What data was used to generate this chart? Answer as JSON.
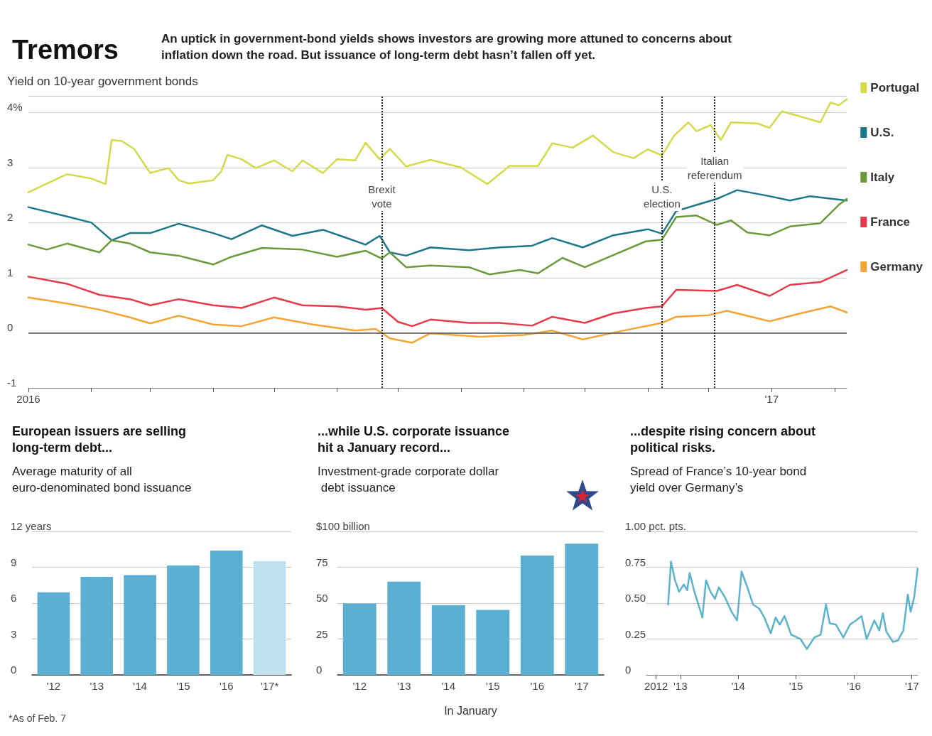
{
  "chart_data": [
    {
      "type": "line",
      "title": "Tremors",
      "subtitle": "An uptick in government-bond yields shows investors are growing more attuned to concerns about inflation down the road. But issuance of long-term debt hasn’t fallen off yet.",
      "ylabel": "Yield on 10-year government bonds",
      "xlim": [
        "2016-01-01",
        "2017-02-07"
      ],
      "xticks": [
        {
          "value": "2016-01-01",
          "label": "2016"
        },
        {
          "value": "2016-02-01",
          "label": null
        },
        {
          "value": "2016-03-01",
          "label": null
        },
        {
          "value": "2016-04-01",
          "label": null
        },
        {
          "value": "2016-05-01",
          "label": null
        },
        {
          "value": "2016-06-01",
          "label": null
        },
        {
          "value": "2016-07-01",
          "label": null
        },
        {
          "value": "2016-08-01",
          "label": null
        },
        {
          "value": "2016-09-01",
          "label": null
        },
        {
          "value": "2016-10-01",
          "label": null
        },
        {
          "value": "2016-11-01",
          "label": null
        },
        {
          "value": "2016-12-01",
          "label": null
        },
        {
          "value": "2017-01-01",
          "label": "'17"
        },
        {
          "value": "2017-02-01",
          "label": null
        }
      ],
      "ylim": [
        -1,
        4.3
      ],
      "yticks": [
        -1,
        0,
        1,
        2,
        3,
        {
          "value": 4,
          "label": "4%"
        }
      ],
      "grid": "y",
      "legend": "right",
      "marker": "none",
      "series": [
        {
          "name": "Portugal",
          "color": "#d6d94a",
          "x": [
            "2016-01-01",
            "2016-01-20",
            "2016-02-01",
            "2016-02-08",
            "2016-02-11",
            "2016-02-16",
            "2016-02-22",
            "2016-03-01",
            "2016-03-10",
            "2016-03-15",
            "2016-03-20",
            "2016-04-01",
            "2016-04-05",
            "2016-04-08",
            "2016-04-15",
            "2016-04-22",
            "2016-05-01",
            "2016-05-10",
            "2016-05-15",
            "2016-05-25",
            "2016-06-01",
            "2016-06-10",
            "2016-06-15",
            "2016-06-22",
            "2016-06-27",
            "2016-07-05",
            "2016-07-17",
            "2016-08-01",
            "2016-08-14",
            "2016-08-25",
            "2016-09-08",
            "2016-09-15",
            "2016-09-25",
            "2016-10-05",
            "2016-10-15",
            "2016-10-25",
            "2016-11-01",
            "2016-11-08",
            "2016-11-14",
            "2016-11-21",
            "2016-11-25",
            "2016-12-02",
            "2016-12-07",
            "2016-12-12",
            "2016-12-25",
            "2016-12-31",
            "2017-01-06",
            "2017-01-15",
            "2017-01-25",
            "2017-01-30",
            "2017-02-03",
            "2017-02-07"
          ],
          "values": [
            2.55,
            2.88,
            2.8,
            2.7,
            3.5,
            3.48,
            3.34,
            2.9,
            2.99,
            2.77,
            2.71,
            2.77,
            2.93,
            3.23,
            3.15,
            2.99,
            3.13,
            2.93,
            3.13,
            2.9,
            3.15,
            3.13,
            3.45,
            3.15,
            3.34,
            3.02,
            3.14,
            3.0,
            2.7,
            3.03,
            3.03,
            3.44,
            3.36,
            3.58,
            3.28,
            3.17,
            3.33,
            3.22,
            3.58,
            3.82,
            3.66,
            3.77,
            3.5,
            3.82,
            3.8,
            3.72,
            4.02,
            3.93,
            3.82,
            4.18,
            4.13,
            4.24
          ]
        },
        {
          "name": "U.S.",
          "color": "#1b7689",
          "x": [
            "2016-01-01",
            "2016-01-20",
            "2016-02-01",
            "2016-02-11",
            "2016-02-20",
            "2016-03-01",
            "2016-03-15",
            "2016-04-01",
            "2016-04-10",
            "2016-04-25",
            "2016-05-10",
            "2016-05-25",
            "2016-06-05",
            "2016-06-15",
            "2016-06-22",
            "2016-06-27",
            "2016-07-05",
            "2016-07-17",
            "2016-08-05",
            "2016-08-20",
            "2016-09-05",
            "2016-09-15",
            "2016-09-30",
            "2016-10-15",
            "2016-11-01",
            "2016-11-08",
            "2016-11-15",
            "2016-11-25",
            "2016-12-05",
            "2016-12-15",
            "2016-12-31",
            "2017-01-10",
            "2017-01-20",
            "2017-02-07"
          ],
          "values": [
            2.28,
            2.11,
            2.0,
            1.68,
            1.81,
            1.81,
            1.98,
            1.81,
            1.7,
            1.95,
            1.76,
            1.87,
            1.73,
            1.6,
            1.76,
            1.46,
            1.4,
            1.55,
            1.5,
            1.55,
            1.58,
            1.72,
            1.55,
            1.77,
            1.88,
            1.8,
            2.21,
            2.32,
            2.43,
            2.59,
            2.48,
            2.4,
            2.48,
            2.4
          ]
        },
        {
          "name": "Italy",
          "color": "#6b9a3a",
          "x": [
            "2016-01-01",
            "2016-01-10",
            "2016-01-20",
            "2016-02-05",
            "2016-02-11",
            "2016-02-20",
            "2016-03-01",
            "2016-03-15",
            "2016-04-01",
            "2016-04-10",
            "2016-04-25",
            "2016-05-15",
            "2016-06-01",
            "2016-06-15",
            "2016-06-23",
            "2016-06-27",
            "2016-07-05",
            "2016-07-17",
            "2016-08-05",
            "2016-08-15",
            "2016-08-30",
            "2016-09-08",
            "2016-09-20",
            "2016-10-01",
            "2016-10-15",
            "2016-10-31",
            "2016-11-08",
            "2016-11-15",
            "2016-11-25",
            "2016-12-05",
            "2016-12-12",
            "2016-12-20",
            "2016-12-31",
            "2017-01-10",
            "2017-01-25",
            "2017-02-03",
            "2017-02-07"
          ],
          "values": [
            1.6,
            1.51,
            1.62,
            1.46,
            1.68,
            1.62,
            1.46,
            1.4,
            1.24,
            1.38,
            1.54,
            1.51,
            1.38,
            1.49,
            1.35,
            1.46,
            1.19,
            1.22,
            1.19,
            1.06,
            1.14,
            1.08,
            1.36,
            1.19,
            1.41,
            1.66,
            1.69,
            2.1,
            2.13,
            1.96,
            2.04,
            1.82,
            1.77,
            1.93,
            1.99,
            2.32,
            2.43
          ]
        },
        {
          "name": "France",
          "color": "#e63a4b",
          "x": [
            "2016-01-01",
            "2016-01-20",
            "2016-02-05",
            "2016-02-20",
            "2016-03-01",
            "2016-03-15",
            "2016-04-01",
            "2016-04-15",
            "2016-05-01",
            "2016-05-15",
            "2016-06-01",
            "2016-06-15",
            "2016-06-23",
            "2016-07-01",
            "2016-07-08",
            "2016-07-17",
            "2016-08-05",
            "2016-08-20",
            "2016-09-05",
            "2016-09-15",
            "2016-10-01",
            "2016-10-15",
            "2016-10-31",
            "2016-11-08",
            "2016-11-15",
            "2016-12-05",
            "2016-12-15",
            "2016-12-31",
            "2017-01-10",
            "2017-01-25",
            "2017-02-07"
          ],
          "values": [
            1.02,
            0.89,
            0.69,
            0.61,
            0.5,
            0.61,
            0.5,
            0.45,
            0.64,
            0.5,
            0.48,
            0.42,
            0.45,
            0.2,
            0.12,
            0.24,
            0.18,
            0.18,
            0.13,
            0.29,
            0.18,
            0.35,
            0.45,
            0.48,
            0.78,
            0.76,
            0.87,
            0.67,
            0.87,
            0.92,
            1.14
          ]
        },
        {
          "name": "Germany",
          "color": "#f2a535",
          "x": [
            "2016-01-01",
            "2016-01-20",
            "2016-02-05",
            "2016-02-20",
            "2016-03-01",
            "2016-03-15",
            "2016-04-01",
            "2016-04-15",
            "2016-05-01",
            "2016-05-20",
            "2016-06-10",
            "2016-06-20",
            "2016-06-27",
            "2016-07-08",
            "2016-07-17",
            "2016-08-10",
            "2016-09-01",
            "2016-09-15",
            "2016-09-30",
            "2016-10-20",
            "2016-11-08",
            "2016-11-15",
            "2016-12-01",
            "2016-12-10",
            "2016-12-31",
            "2017-01-15",
            "2017-01-30",
            "2017-02-07"
          ],
          "values": [
            0.64,
            0.53,
            0.42,
            0.28,
            0.17,
            0.31,
            0.15,
            0.12,
            0.28,
            0.15,
            0.04,
            0.07,
            -0.1,
            -0.18,
            -0.01,
            -0.07,
            -0.04,
            0.04,
            -0.12,
            0.04,
            0.18,
            0.29,
            0.32,
            0.4,
            0.21,
            0.35,
            0.48,
            0.37
          ]
        }
      ],
      "ref_lines": [
        {
          "axis": "y",
          "value": 0,
          "color": "#555555",
          "line_style": "solid"
        },
        {
          "axis": "x",
          "value": "2016-06-23",
          "label": "Brexit vote",
          "color": "#222222",
          "line_style": "dotted"
        },
        {
          "axis": "x",
          "value": "2016-11-08",
          "label": "U.S. election",
          "color": "#222222",
          "line_style": "dotted"
        },
        {
          "axis": "x",
          "value": "2016-12-04",
          "label": "Italian referendum",
          "color": "#222222",
          "line_style": "dotted"
        }
      ]
    },
    {
      "type": "bar",
      "title": "European issuers are selling long-term debt...",
      "subtitle": "Average maturity of all euro-denominated bond issuance",
      "categories": [
        "'12",
        "'13",
        "'14",
        "'15",
        "'16",
        "'17*"
      ],
      "values": [
        6.9,
        8.2,
        8.35,
        9.15,
        10.4,
        9.5
      ],
      "colors": [
        "#5aafd2",
        "#5aafd2",
        "#5aafd2",
        "#5aafd2",
        "#5aafd2",
        "#bfe0ee"
      ],
      "ylim": [
        0,
        12
      ],
      "yticks": [
        0,
        3,
        6,
        9,
        {
          "value": 12,
          "label": "12 years"
        }
      ],
      "grid": "y",
      "annotations": [
        "*As of Feb. 7"
      ]
    },
    {
      "type": "bar",
      "title": "...while U.S. corporate issuance hit a January record...",
      "subtitle": "Investment-grade corporate dollar debt issuance",
      "xlabel": "In January",
      "categories": [
        "'12",
        "'13",
        "'14",
        "'15",
        "'16",
        "'17"
      ],
      "values": [
        49.8,
        65,
        48.6,
        45.3,
        83.2,
        91.4
      ],
      "color": "#5aafd2",
      "ylim": [
        0,
        100
      ],
      "yticks": [
        0,
        25,
        50,
        75,
        {
          "value": 100,
          "label": "$100 billion"
        }
      ],
      "grid": "y"
    },
    {
      "type": "line",
      "title": "...despite rising concern about political risks.",
      "subtitle": "Spread of France’s 10-year bond yield over Germany’s",
      "xlim": [
        "2012-06-01",
        "2017-02-07"
      ],
      "xticks": [
        {
          "value": "2012-08-01",
          "label": "2012"
        },
        {
          "value": "2013-01-01",
          "label": "'13"
        },
        {
          "value": "2014-01-01",
          "label": "'14"
        },
        {
          "value": "2015-01-01",
          "label": "'15"
        },
        {
          "value": "2016-01-01",
          "label": "'16"
        },
        {
          "value": "2017-01-01",
          "label": "'17"
        }
      ],
      "ylim": [
        0,
        1
      ],
      "yticks": [
        0,
        0.25,
        {
          "value": 0.5,
          "label": "0.50"
        },
        0.75,
        {
          "value": 1,
          "label": "1.00 pct. pts."
        }
      ],
      "grid": "y",
      "marker": "none",
      "series": [
        {
          "color": "#5ab4cc",
          "x": [
            "2012-10-16",
            "2012-11-03",
            "2012-11-28",
            "2012-12-24",
            "2013-01-23",
            "2013-02-13",
            "2013-03-01",
            "2013-03-28",
            "2013-05-20",
            "2013-06-12",
            "2013-07-10",
            "2013-08-07",
            "2013-09-01",
            "2013-10-10",
            "2013-11-20",
            "2013-12-25",
            "2014-01-22",
            "2014-02-28",
            "2014-04-05",
            "2014-05-15",
            "2014-06-15",
            "2014-07-25",
            "2014-08-25",
            "2014-09-20",
            "2014-10-20",
            "2014-12-01",
            "2015-01-29",
            "2015-03-10",
            "2015-04-26",
            "2015-06-05",
            "2015-07-09",
            "2015-08-01",
            "2015-09-10",
            "2015-10-26",
            "2015-12-07",
            "2016-01-15",
            "2016-02-18",
            "2016-03-21",
            "2016-05-09",
            "2016-06-09",
            "2016-07-02",
            "2016-07-24",
            "2016-09-03",
            "2016-10-05",
            "2016-11-08",
            "2016-12-06",
            "2016-12-24",
            "2017-01-15",
            "2017-02-06"
          ],
          "values": [
            0.49,
            0.79,
            0.66,
            0.58,
            0.63,
            0.59,
            0.71,
            0.59,
            0.4,
            0.66,
            0.58,
            0.53,
            0.61,
            0.54,
            0.44,
            0.38,
            0.72,
            0.61,
            0.49,
            0.46,
            0.4,
            0.29,
            0.4,
            0.35,
            0.41,
            0.28,
            0.25,
            0.18,
            0.26,
            0.28,
            0.49,
            0.36,
            0.35,
            0.26,
            0.35,
            0.38,
            0.41,
            0.25,
            0.38,
            0.31,
            0.43,
            0.3,
            0.23,
            0.24,
            0.31,
            0.56,
            0.44,
            0.54,
            0.74
          ]
        }
      ]
    }
  ]
}
